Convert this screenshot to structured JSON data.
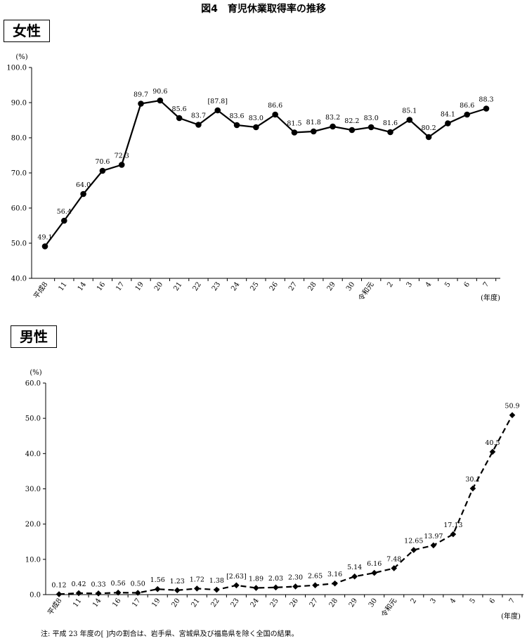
{
  "figure_title": "図4　育児休業取得率の推移",
  "note": "注: 平成 23 年度の[ ]内の割合は、岩手県、宮城県及び福島県を除く全国の結果。",
  "chart_data": [
    {
      "type": "line",
      "section_label": "女性",
      "y_unit": "(%)",
      "x_unit": "(年度)",
      "ylim": [
        40,
        100
      ],
      "yticks": [
        "40.0",
        "50.0",
        "60.0",
        "70.0",
        "80.0",
        "90.0",
        "100.0"
      ],
      "categories": [
        "平成8",
        "11",
        "14",
        "16",
        "17",
        "19",
        "20",
        "21",
        "22",
        "23",
        "24",
        "25",
        "26",
        "27",
        "28",
        "29",
        "30",
        "令和元",
        "2",
        "3",
        "4",
        "5",
        "6",
        "7"
      ],
      "values": [
        49.1,
        56.4,
        64.0,
        70.6,
        72.3,
        89.7,
        90.6,
        85.6,
        83.7,
        87.8,
        83.6,
        83.0,
        86.6,
        81.5,
        81.8,
        83.2,
        82.2,
        83.0,
        81.6,
        85.1,
        80.2,
        84.1,
        86.6,
        88.3
      ],
      "labels": [
        "49.1",
        "56.4",
        "64.0",
        "70.6",
        "72.3",
        "89.7",
        "90.6",
        "85.6",
        "83.7",
        "[87.8]",
        "83.6",
        "83.0",
        "86.6",
        "81.5",
        "81.8",
        "83.2",
        "82.2",
        "83.0",
        "81.6",
        "85.1",
        "80.2",
        "84.1",
        "86.6",
        "88.3"
      ],
      "line_style": "solid",
      "marker": "circle"
    },
    {
      "type": "line",
      "section_label": "男性",
      "y_unit": "(%)",
      "x_unit": "(年度)",
      "ylim": [
        0,
        60
      ],
      "yticks": [
        "0.0",
        "10.0",
        "20.0",
        "30.0",
        "40.0",
        "50.0",
        "60.0"
      ],
      "categories": [
        "平成8",
        "11",
        "14",
        "16",
        "17",
        "19",
        "20",
        "21",
        "22",
        "23",
        "24",
        "25",
        "26",
        "27",
        "28",
        "29",
        "30",
        "令和元",
        "2",
        "3",
        "4",
        "5",
        "6",
        "7"
      ],
      "values": [
        0.12,
        0.42,
        0.33,
        0.56,
        0.5,
        1.56,
        1.23,
        1.72,
        1.38,
        2.63,
        1.89,
        2.03,
        2.3,
        2.65,
        3.16,
        5.14,
        6.16,
        7.48,
        12.65,
        13.97,
        17.13,
        30.1,
        40.5,
        50.9
      ],
      "labels": [
        "0.12",
        "0.42",
        "0.33",
        "0.56",
        "0.50",
        "1.56",
        "1.23",
        "1.72",
        "1.38",
        "[2.63]",
        "1.89",
        "2.03",
        "2.30",
        "2.65",
        "3.16",
        "5.14",
        "6.16",
        "7.48",
        "12.65",
        "13.97",
        "17.13",
        "30.1",
        "40.5",
        "50.9"
      ],
      "line_style": "dashed",
      "marker": "diamond"
    }
  ]
}
